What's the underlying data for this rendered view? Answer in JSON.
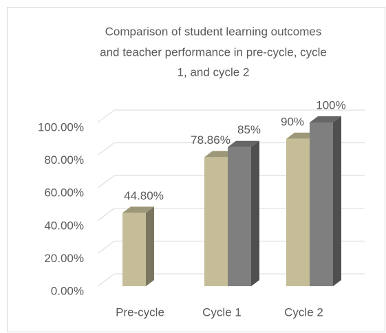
{
  "chart_data": {
    "type": "bar3d",
    "title": [
      "Comparison of student learning outcomes",
      "and teacher performance in pre-cycle, cycle",
      "1, and cycle 2"
    ],
    "categories": [
      "Pre-cycle",
      "Cycle 1",
      "Cycle 2"
    ],
    "series": [
      {
        "color": "#c4bd97",
        "values": [
          44.8,
          78.86,
          90
        ],
        "value_labels": [
          "44.80%",
          "78.86%",
          "90%"
        ]
      },
      {
        "color": "#7f7f7f",
        "values": [
          null,
          85,
          100
        ],
        "value_labels": [
          null,
          "85%",
          "100%"
        ]
      }
    ],
    "ylim": [
      0,
      100
    ],
    "yticks": [
      {
        "value": 0,
        "label": "0.00%"
      },
      {
        "value": 20,
        "label": "20.00%"
      },
      {
        "value": 40,
        "label": "40.00%"
      },
      {
        "value": 60,
        "label": "60.00%"
      },
      {
        "value": 80,
        "label": "80.00%"
      },
      {
        "value": 100,
        "label": "100.00%"
      }
    ],
    "grid": true
  }
}
